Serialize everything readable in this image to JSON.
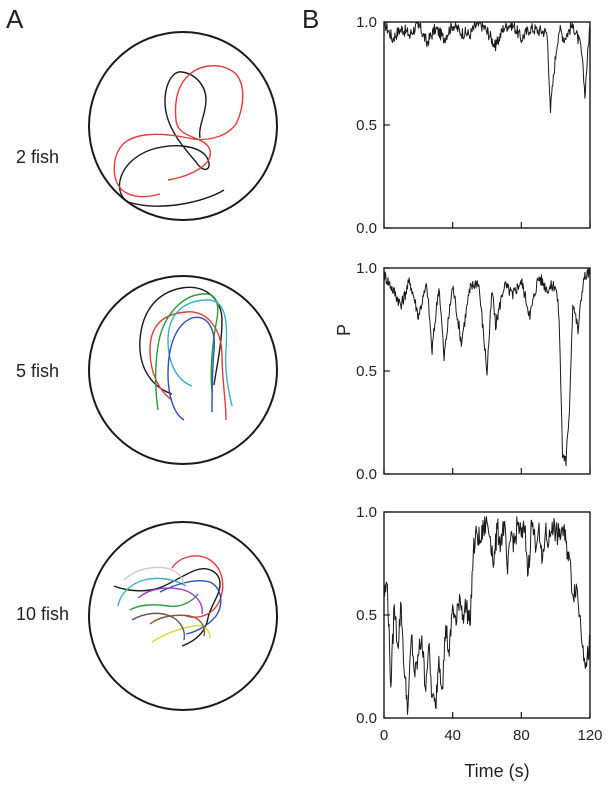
{
  "figure": {
    "panel_a_letter": "A",
    "panel_b_letter": "B",
    "panel_a_labels": [
      "2 fish",
      "5 fish",
      "10 fish"
    ],
    "y_axis_title": "P",
    "x_axis_title": "Time (s)",
    "trajectory_colors": [
      "#1a1a1a",
      "#e23a3a",
      "#2b9a3a",
      "#36b0c8",
      "#2a4fb5",
      "#9a3ac8",
      "#d8d830",
      "#c8c8c8",
      "#8a5a2a",
      "#5a5a5a"
    ]
  },
  "chart_data": [
    {
      "type": "line",
      "label": "2 fish",
      "xlabel": "",
      "ylabel": "",
      "xlim": [
        0,
        120
      ],
      "ylim": [
        0.0,
        1.0
      ],
      "yticks": [
        "0.0",
        "0.5",
        "1.0"
      ],
      "xticks": [
        0,
        40,
        80,
        120
      ],
      "x": [
        0,
        5,
        10,
        15,
        20,
        25,
        30,
        35,
        40,
        45,
        50,
        55,
        60,
        65,
        70,
        75,
        80,
        85,
        90,
        95,
        97,
        100,
        102,
        105,
        110,
        115,
        117,
        120
      ],
      "y": [
        0.98,
        0.9,
        0.95,
        0.92,
        0.97,
        0.88,
        0.95,
        0.9,
        0.97,
        0.93,
        0.92,
        0.98,
        0.94,
        0.86,
        0.96,
        0.97,
        0.9,
        0.95,
        0.94,
        0.93,
        0.56,
        0.82,
        0.95,
        0.9,
        0.97,
        0.85,
        0.63,
        0.98
      ]
    },
    {
      "type": "line",
      "label": "5 fish",
      "xlabel": "",
      "ylabel": "P",
      "xlim": [
        0,
        120
      ],
      "ylim": [
        0.0,
        1.0
      ],
      "yticks": [
        "0.0",
        "0.5",
        "1.0"
      ],
      "xticks": [
        0,
        40,
        80,
        120
      ],
      "x": [
        0,
        5,
        10,
        15,
        20,
        25,
        28,
        32,
        35,
        40,
        45,
        50,
        55,
        60,
        63,
        65,
        70,
        75,
        80,
        85,
        90,
        95,
        100,
        102,
        104,
        106,
        108,
        110,
        113,
        116,
        118,
        120
      ],
      "y": [
        0.95,
        0.88,
        0.8,
        0.92,
        0.75,
        0.9,
        0.58,
        0.9,
        0.55,
        0.9,
        0.62,
        0.88,
        0.92,
        0.48,
        0.88,
        0.7,
        0.9,
        0.85,
        0.92,
        0.75,
        0.94,
        0.88,
        0.9,
        0.75,
        0.08,
        0.04,
        0.3,
        0.82,
        0.68,
        0.92,
        0.95,
        0.96
      ]
    },
    {
      "type": "line",
      "label": "10 fish",
      "xlabel": "Time (s)",
      "ylabel": "",
      "xlim": [
        0,
        120
      ],
      "ylim": [
        0.0,
        1.0
      ],
      "yticks": [
        "0.0",
        "0.5",
        "1.0"
      ],
      "xticks": [
        "0",
        "40",
        "80",
        "120"
      ],
      "x": [
        0,
        2,
        4,
        6,
        8,
        10,
        12,
        14,
        16,
        18,
        20,
        22,
        24,
        26,
        28,
        30,
        32,
        34,
        36,
        38,
        40,
        42,
        44,
        46,
        48,
        50,
        52,
        54,
        56,
        58,
        60,
        62,
        64,
        66,
        68,
        70,
        72,
        74,
        76,
        78,
        80,
        82,
        84,
        86,
        88,
        90,
        92,
        94,
        96,
        98,
        100,
        102,
        104,
        106,
        108,
        110,
        112,
        114,
        116,
        118,
        120
      ],
      "y": [
        0.6,
        0.65,
        0.15,
        0.55,
        0.35,
        0.55,
        0.2,
        0.05,
        0.4,
        0.2,
        0.3,
        0.4,
        0.15,
        0.35,
        0.1,
        0.05,
        0.3,
        0.15,
        0.45,
        0.3,
        0.55,
        0.45,
        0.6,
        0.5,
        0.55,
        0.45,
        0.8,
        0.9,
        0.85,
        0.92,
        0.95,
        0.88,
        0.75,
        0.92,
        0.85,
        0.95,
        0.7,
        0.9,
        0.85,
        0.95,
        0.88,
        0.92,
        0.7,
        0.96,
        0.85,
        0.92,
        0.75,
        0.9,
        0.85,
        0.95,
        0.9,
        0.88,
        0.92,
        0.85,
        0.78,
        0.6,
        0.65,
        0.5,
        0.35,
        0.25,
        0.38
      ]
    }
  ]
}
